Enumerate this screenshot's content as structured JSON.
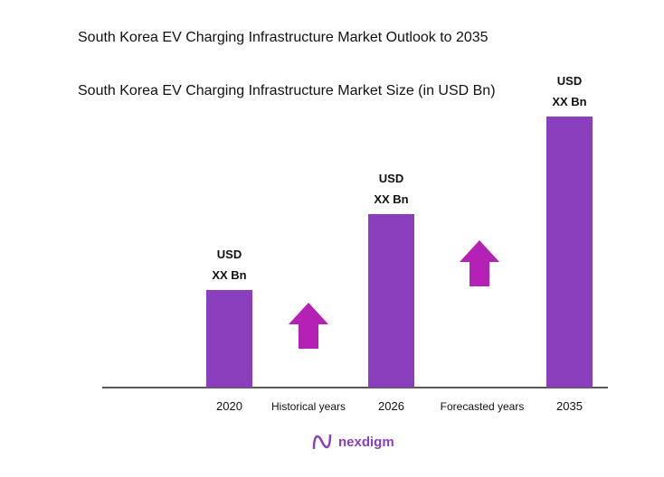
{
  "title": "South Korea EV Charging Infrastructure Market Outlook to 2035",
  "subtitle": "South Korea EV Charging Infrastructure Market Size (in USD Bn)",
  "brand": {
    "logo_text": "nexdigm"
  },
  "colors": {
    "bar": "#8a3fbc",
    "arrow": "#b520b5",
    "axis": "#222222"
  },
  "chart_data": {
    "type": "bar",
    "title": "South Korea EV Charging Infrastructure Market Size (in USD Bn)",
    "categories": [
      "2020",
      "2026",
      "2035"
    ],
    "relative_size_index": [
      36,
      64,
      100
    ],
    "data_labels": [
      [
        "USD",
        "XX Bn"
      ],
      [
        "USD",
        "XX Bn"
      ],
      [
        "USD",
        "XX Bn"
      ]
    ],
    "period_labels": [
      "Historical years",
      "Forecasted years"
    ],
    "period_arrows": [
      "arrow-up-icon",
      "arrow-up-icon"
    ],
    "grid": false,
    "legend": "none"
  }
}
